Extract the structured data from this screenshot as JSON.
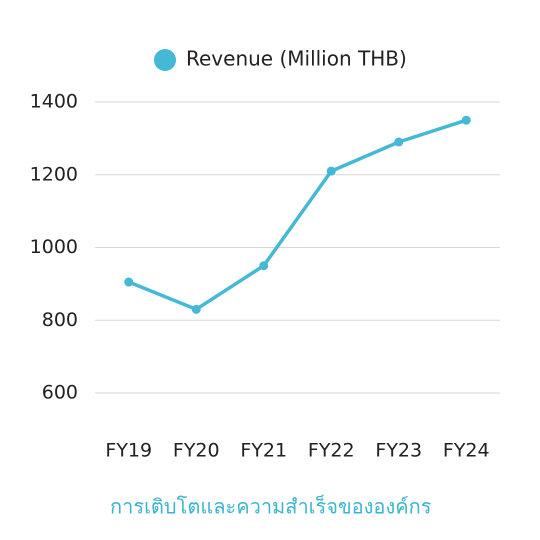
{
  "chart_data": {
    "type": "line",
    "categories": [
      "FY19",
      "FY20",
      "FY21",
      "FY22",
      "FY23",
      "FY24"
    ],
    "series": [
      {
        "name": "Revenue (Million THB)",
        "color": "#45b8d6",
        "values": [
          905,
          830,
          950,
          1210,
          1290,
          1350
        ]
      }
    ],
    "ylim": [
      600,
      1400
    ],
    "yticks": [
      600,
      800,
      1000,
      1200,
      1400
    ],
    "grid": true,
    "legend": "top",
    "caption": "การเติบโตและความสำเร็จขององค์กร"
  }
}
